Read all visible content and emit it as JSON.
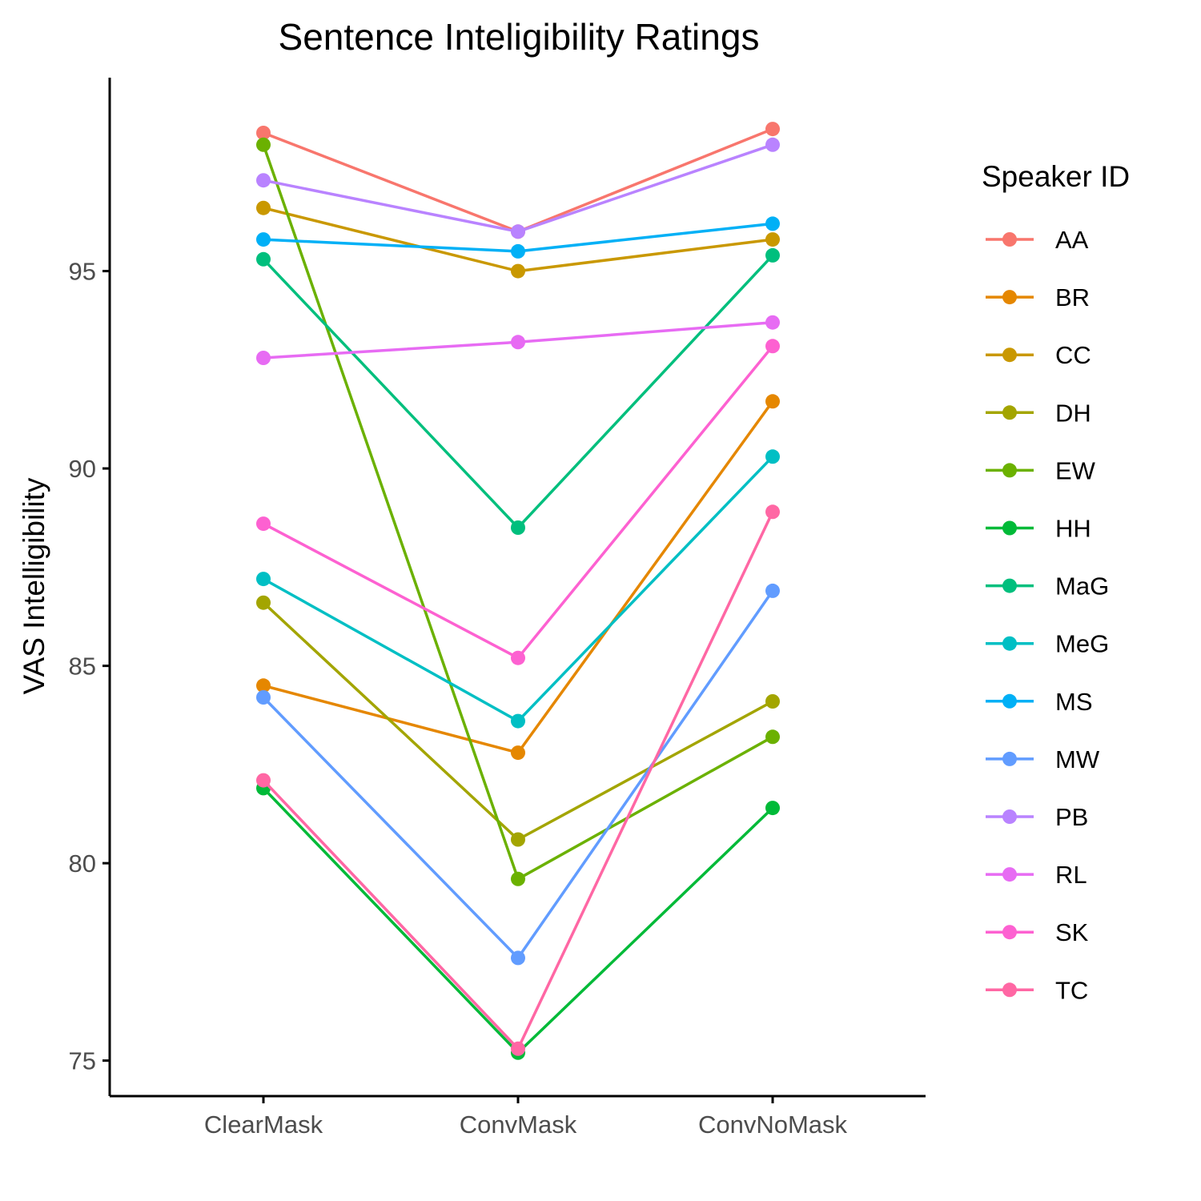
{
  "chart_data": {
    "type": "line",
    "title": "Sentence Inteligibility Ratings",
    "xlabel": "",
    "ylabel": "VAS Intelligibility",
    "categories": [
      "ClearMask",
      "ConvMask",
      "ConvNoMask"
    ],
    "y_ticks": [
      "75",
      "80",
      "85",
      "90",
      "95"
    ],
    "ylim": [
      74.1,
      99.9
    ],
    "grid": false,
    "legend": {
      "title": "Speaker ID",
      "position": "right"
    },
    "series": [
      {
        "name": "AA",
        "color": "#F8766D",
        "values": [
          98.5,
          96.0,
          98.6
        ]
      },
      {
        "name": "BR",
        "color": "#E58700",
        "values": [
          84.5,
          82.8,
          91.7
        ]
      },
      {
        "name": "CC",
        "color": "#C99800",
        "values": [
          96.6,
          95.0,
          95.8
        ]
      },
      {
        "name": "DH",
        "color": "#A3A500",
        "values": [
          86.6,
          80.6,
          84.1
        ]
      },
      {
        "name": "EW",
        "color": "#6BB100",
        "values": [
          98.2,
          79.6,
          83.2
        ]
      },
      {
        "name": "HH",
        "color": "#00BA38",
        "values": [
          81.9,
          75.2,
          81.4
        ]
      },
      {
        "name": "MaG",
        "color": "#00BF7D",
        "values": [
          95.3,
          88.5,
          95.4
        ]
      },
      {
        "name": "MeG",
        "color": "#00BFC4",
        "values": [
          87.2,
          83.6,
          90.3
        ]
      },
      {
        "name": "MS",
        "color": "#00B0F6",
        "values": [
          95.8,
          95.5,
          96.2
        ]
      },
      {
        "name": "MW",
        "color": "#619CFF",
        "values": [
          84.2,
          77.6,
          86.9
        ]
      },
      {
        "name": "PB",
        "color": "#B983FF",
        "values": [
          97.3,
          96.0,
          98.2
        ]
      },
      {
        "name": "RL",
        "color": "#E76BF3",
        "values": [
          92.8,
          93.2,
          93.7
        ]
      },
      {
        "name": "SK",
        "color": "#FD61D1",
        "values": [
          88.6,
          85.2,
          93.1
        ]
      },
      {
        "name": "TC",
        "color": "#FF67A4",
        "values": [
          82.1,
          75.3,
          88.9
        ]
      }
    ]
  }
}
